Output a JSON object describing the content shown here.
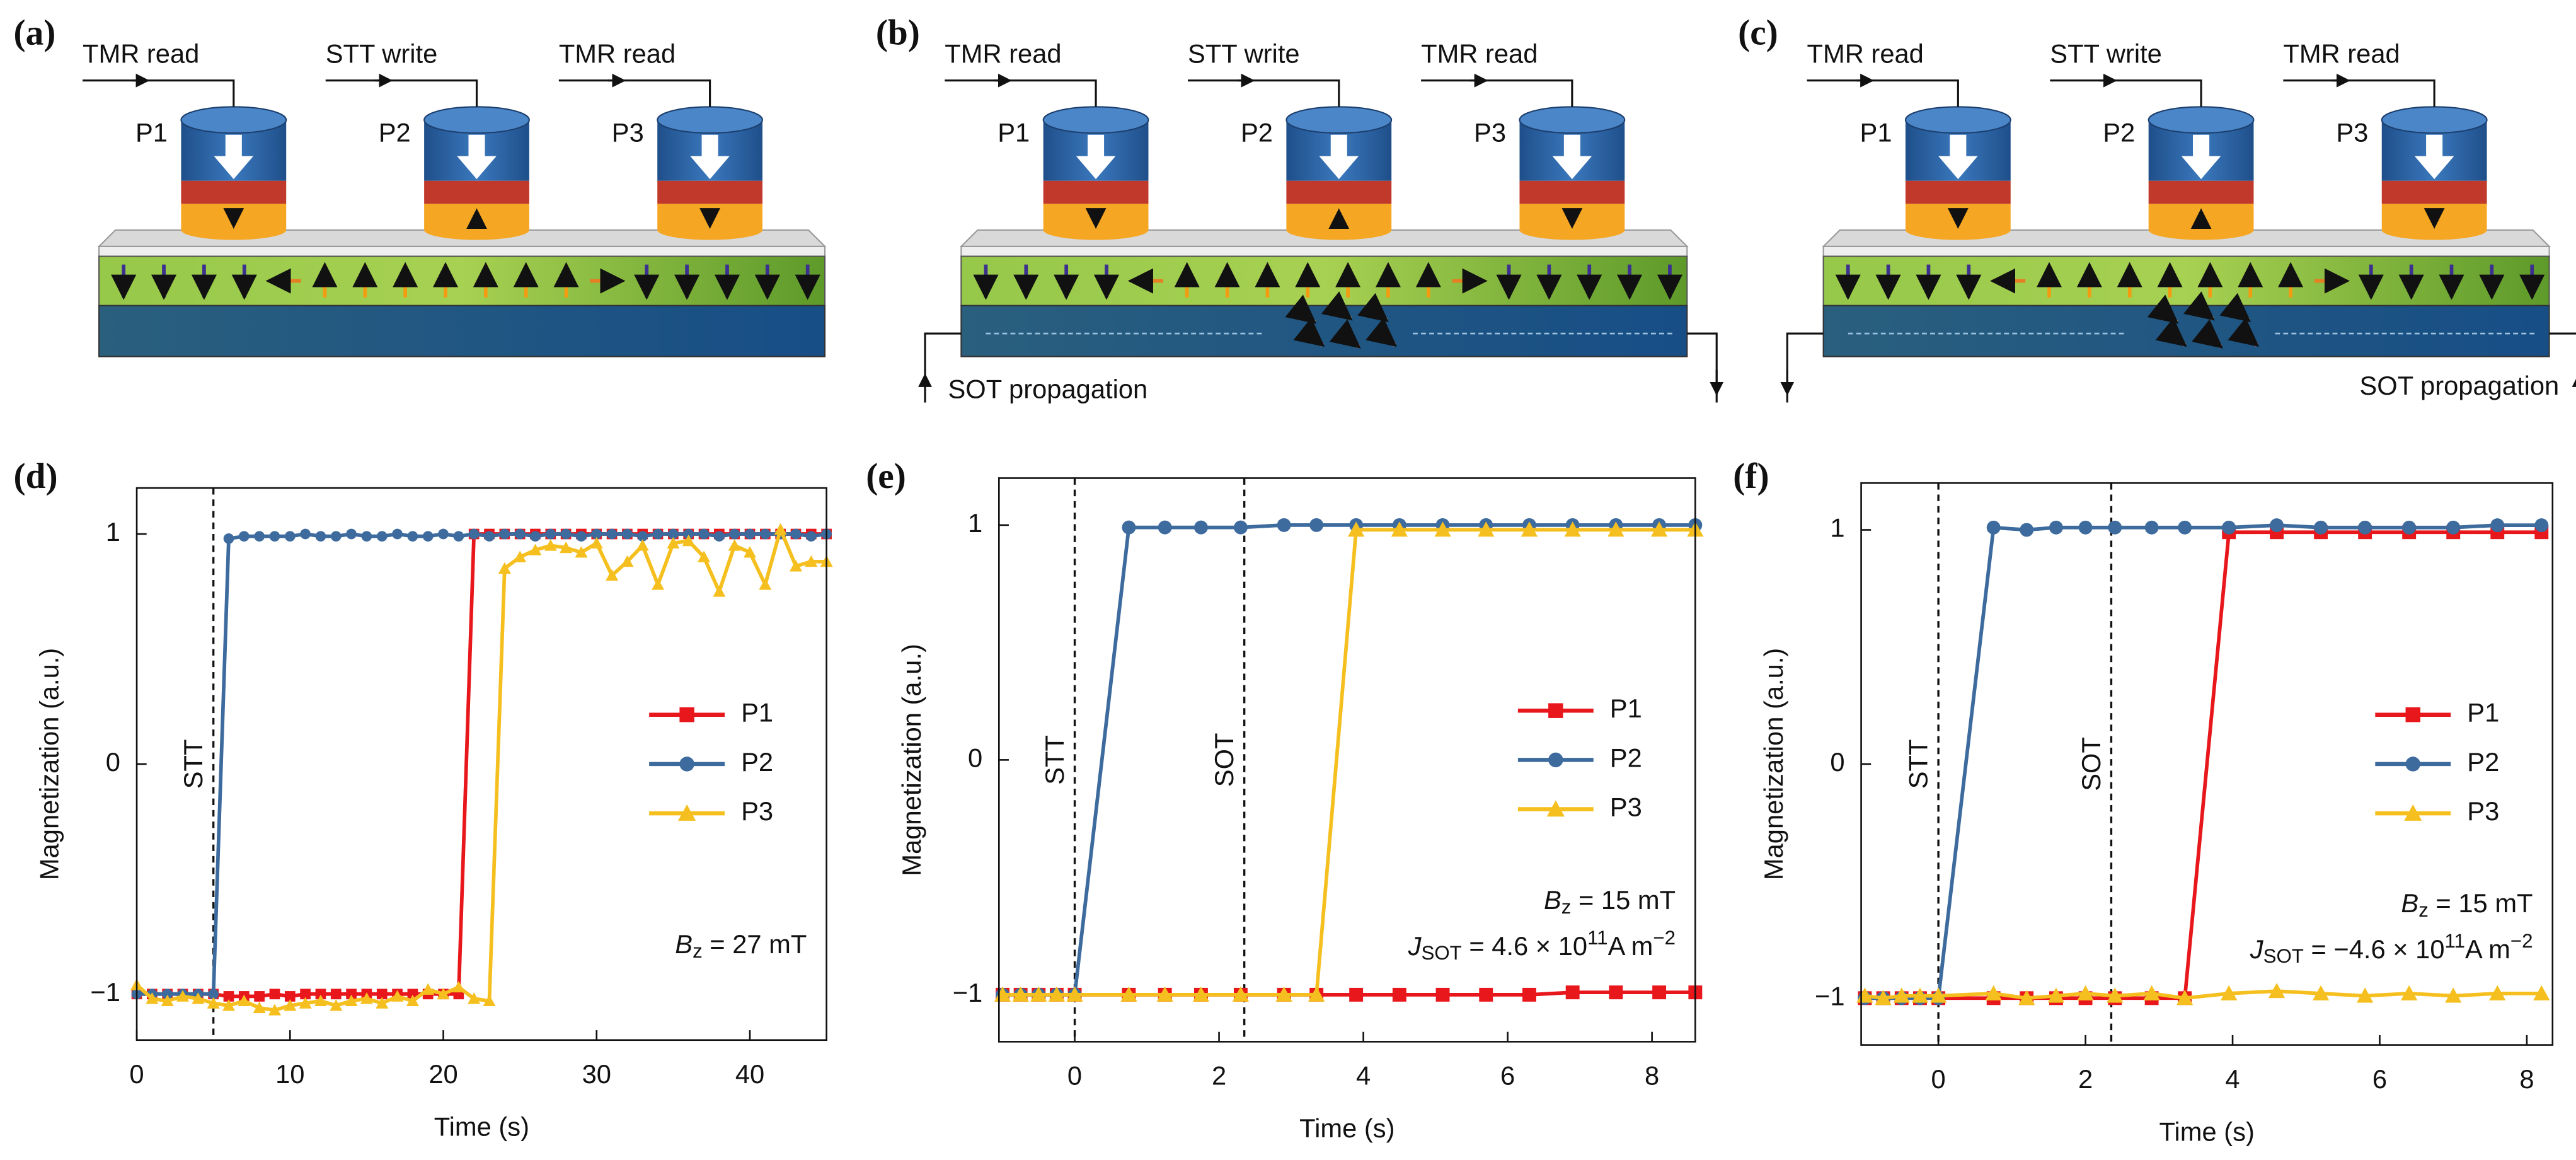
{
  "diagrams": [
    {
      "label": "(a)",
      "ops": [
        "TMR read",
        "STT write",
        "TMR read"
      ],
      "pillars": [
        "P1",
        "P2",
        "P3"
      ]
    },
    {
      "label": "(b)",
      "ops": [
        "TMR read",
        "STT write",
        "TMR read"
      ],
      "pillars": [
        "P1",
        "P2",
        "P3"
      ],
      "current": "SOT propagation"
    },
    {
      "label": "(c)",
      "ops": [
        "TMR read",
        "STT write",
        "TMR read"
      ],
      "pillars": [
        "P1",
        "P2",
        "P3"
      ],
      "current": "SOT propagation"
    }
  ],
  "chart_data": [
    {
      "type": "line",
      "panel_label": "(d)",
      "xlabel": "Time (s)",
      "ylabel": "Magnetization (a.u.)",
      "x": [
        0,
        1,
        2,
        3,
        4,
        5,
        6,
        7,
        8,
        9,
        10,
        11,
        12,
        13,
        14,
        15,
        16,
        17,
        18,
        19,
        20,
        21,
        22,
        23,
        24,
        25,
        26,
        27,
        28,
        29,
        30,
        31,
        32,
        33,
        34,
        35,
        36,
        37,
        38,
        39,
        40,
        41,
        42,
        43,
        44,
        45
      ],
      "series": [
        {
          "name": "P1",
          "color": "#e8171c",
          "marker": "square",
          "values": [
            -1,
            -1,
            -1,
            -1,
            -1,
            -1,
            -1.01,
            -1.01,
            -1.01,
            -1,
            -1.01,
            -1,
            -1,
            -1,
            -1,
            -1,
            -1,
            -1,
            -1,
            -1,
            -1,
            -1,
            1,
            1,
            1,
            1,
            1,
            1,
            1,
            1,
            1,
            1,
            1,
            1,
            1,
            1,
            1,
            1,
            1,
            1,
            1,
            1,
            1,
            1,
            1,
            1
          ]
        },
        {
          "name": "P2",
          "color": "#3d6b9e",
          "marker": "circle",
          "values": [
            -1,
            -1,
            -1,
            -1,
            -1,
            -1,
            0.98,
            0.99,
            0.99,
            0.99,
            0.99,
            1,
            0.99,
            0.99,
            1,
            0.99,
            0.99,
            1,
            0.99,
            0.99,
            1,
            0.99,
            1,
            0.99,
            1,
            1,
            0.99,
            1,
            1,
            0.99,
            1,
            1,
            1,
            0.99,
            1,
            1,
            1,
            1,
            0.99,
            1,
            1,
            1,
            1,
            1,
            0.99,
            1
          ]
        },
        {
          "name": "P3",
          "color": "#f5c01f",
          "marker": "triangle",
          "values": [
            -0.96,
            -1.02,
            -1.03,
            -1.01,
            -1.02,
            -1.04,
            -1.05,
            -1.03,
            -1.06,
            -1.07,
            -1.05,
            -1.04,
            -1.03,
            -1.05,
            -1.03,
            -1.02,
            -1.04,
            -1.01,
            -1.03,
            -0.98,
            -1,
            -0.97,
            -1.02,
            -1.03,
            0.85,
            0.9,
            0.93,
            0.95,
            0.94,
            0.92,
            0.96,
            0.82,
            0.88,
            0.95,
            0.78,
            0.96,
            0.97,
            0.9,
            0.75,
            0.95,
            0.92,
            0.78,
            1.02,
            0.86,
            0.88,
            0.88
          ]
        }
      ],
      "xlim": [
        0,
        45
      ],
      "ylim": [
        -1.2,
        1.2
      ],
      "xticks": [
        0,
        10,
        20,
        30,
        40
      ],
      "yticks": [
        {
          "value": -1,
          "label": "−1"
        },
        0,
        1
      ],
      "vlines": [
        {
          "x": 5,
          "label": "STT"
        }
      ],
      "annotations": [
        [
          {
            "text": "B",
            "style": "italic"
          },
          {
            "text": "z",
            "style": "sub"
          },
          {
            "text": " = 27 mT",
            "style": "normal"
          }
        ]
      ],
      "legend": "center right",
      "grid": false
    },
    {
      "type": "line",
      "panel_label": "(e)",
      "xlabel": "Time (s)",
      "ylabel": "Magnetization (a.u.)",
      "x": [
        -1,
        -0.75,
        -0.5,
        -0.25,
        0,
        0.75,
        1.25,
        1.75,
        2.3,
        2.9,
        3.35,
        3.9,
        4.5,
        5.1,
        5.7,
        6.3,
        6.9,
        7.5,
        8.1,
        8.6
      ],
      "series": [
        {
          "name": "P1",
          "color": "#e8171c",
          "marker": "square",
          "values": [
            -1,
            -1,
            -1,
            -1,
            -1,
            -1,
            -1,
            -1,
            -1,
            -1,
            -1,
            -1,
            -1,
            -1,
            -1,
            -1,
            -0.99,
            -0.99,
            -0.99,
            -0.99
          ]
        },
        {
          "name": "P2",
          "color": "#3d6b9e",
          "marker": "circle",
          "values": [
            -1,
            -1,
            -1,
            -1,
            -1,
            0.99,
            0.99,
            0.99,
            0.99,
            1,
            1,
            1,
            1,
            1,
            1,
            1,
            1,
            1,
            1,
            1
          ]
        },
        {
          "name": "P3",
          "color": "#f5c01f",
          "marker": "triangle",
          "values": [
            -1,
            -1,
            -1,
            -1,
            -1,
            -1,
            -1,
            -1,
            -1,
            -1,
            -1,
            0.98,
            0.98,
            0.98,
            0.98,
            0.98,
            0.98,
            0.98,
            0.98,
            0.98
          ]
        }
      ],
      "xlim": [
        -1.05,
        8.6
      ],
      "ylim": [
        -1.2,
        1.2
      ],
      "xticks": [
        0,
        2,
        4,
        6,
        8
      ],
      "yticks": [
        {
          "value": -1,
          "label": "−1"
        },
        0,
        1
      ],
      "vlines": [
        {
          "x": 0,
          "label": "STT"
        },
        {
          "x": 2.35,
          "label": "SOT"
        }
      ],
      "annotations": [
        [
          {
            "text": "B",
            "style": "italic"
          },
          {
            "text": "z",
            "style": "sub"
          },
          {
            "text": " = 15 mT",
            "style": "normal"
          }
        ],
        [
          {
            "text": "J",
            "style": "italic"
          },
          {
            "text": "SOT",
            "style": "sub"
          },
          {
            "text": " = 4.6 × 10",
            "style": "normal"
          },
          {
            "text": "11",
            "style": "sup"
          },
          {
            "text": "A m",
            "style": "normal"
          },
          {
            "text": "−2",
            "style": "sup"
          }
        ]
      ],
      "legend": "center right",
      "grid": false
    },
    {
      "type": "line",
      "panel_label": "(f)",
      "xlabel": "Time (s)",
      "ylabel": "Magnetization (a.u.)",
      "x": [
        -1,
        -0.75,
        -0.5,
        -0.25,
        0,
        0.75,
        1.2,
        1.6,
        2,
        2.4,
        2.9,
        3.35,
        3.95,
        4.6,
        5.2,
        5.8,
        6.4,
        7,
        7.6,
        8.2
      ],
      "series": [
        {
          "name": "P1",
          "color": "#e8171c",
          "marker": "square",
          "values": [
            -1,
            -1,
            -1,
            -1,
            -1,
            -1,
            -1,
            -1,
            -1,
            -1,
            -1,
            -1,
            0.99,
            0.99,
            0.99,
            0.99,
            0.99,
            0.99,
            0.99,
            0.99
          ]
        },
        {
          "name": "P2",
          "color": "#3d6b9e",
          "marker": "circle",
          "values": [
            -1,
            -1,
            -1,
            -1,
            -1,
            1.01,
            1,
            1.01,
            1.01,
            1.01,
            1.01,
            1.01,
            1.01,
            1.02,
            1.01,
            1.01,
            1.01,
            1.01,
            1.02,
            1.02
          ]
        },
        {
          "name": "P3",
          "color": "#f5c01f",
          "marker": "triangle",
          "values": [
            -0.99,
            -1,
            -0.99,
            -0.99,
            -0.99,
            -0.98,
            -1,
            -0.99,
            -0.98,
            -0.99,
            -0.98,
            -1,
            -0.98,
            -0.97,
            -0.98,
            -0.99,
            -0.98,
            -0.99,
            -0.98,
            -0.98
          ]
        }
      ],
      "xlim": [
        -1.05,
        8.35
      ],
      "ylim": [
        -1.2,
        1.2
      ],
      "xticks": [
        0,
        2,
        4,
        6,
        8
      ],
      "yticks": [
        {
          "value": -1,
          "label": "−1"
        },
        0,
        1
      ],
      "vlines": [
        {
          "x": 0,
          "label": "STT"
        },
        {
          "x": 2.35,
          "label": "SOT"
        }
      ],
      "annotations": [
        [
          {
            "text": "B",
            "style": "italic"
          },
          {
            "text": "z",
            "style": "sub"
          },
          {
            "text": " = 15 mT",
            "style": "normal"
          }
        ],
        [
          {
            "text": "J",
            "style": "italic"
          },
          {
            "text": "SOT",
            "style": "sub"
          },
          {
            "text": " = −4.6 × 10",
            "style": "normal"
          },
          {
            "text": "11",
            "style": "sup"
          },
          {
            "text": "A m",
            "style": "normal"
          },
          {
            "text": "−2",
            "style": "sup"
          }
        ]
      ],
      "legend": "center right",
      "grid": false
    }
  ]
}
